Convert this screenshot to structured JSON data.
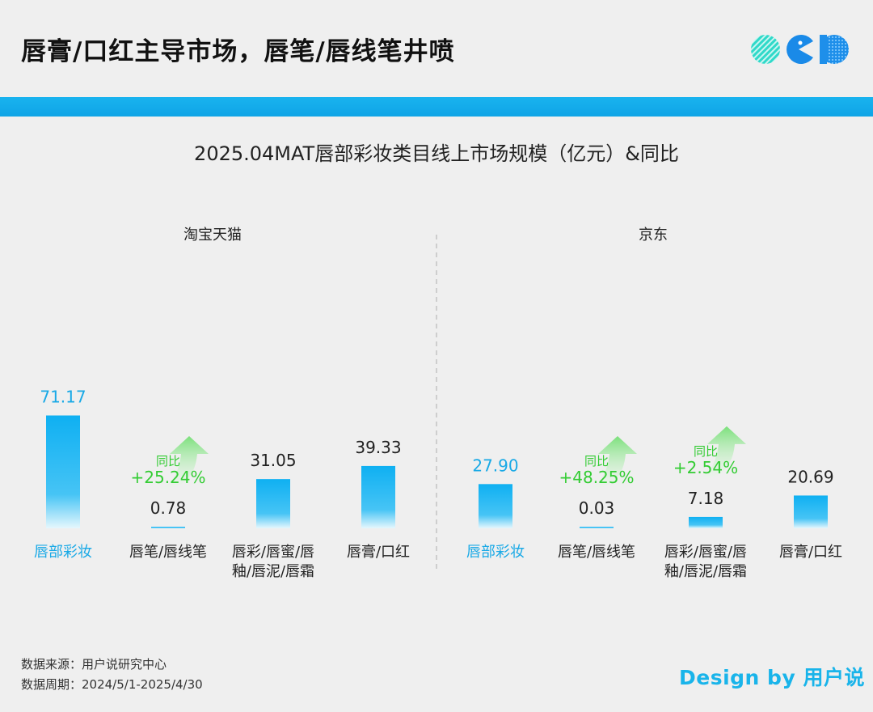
{
  "header": {
    "title": "唇膏/口红主导市场，唇笔/唇线笔井喷"
  },
  "colors": {
    "accent": "#19b3ef",
    "highlight_label": "#19a9e6",
    "yoy_green": "#33cc33",
    "background": "#efefef"
  },
  "chart_data": {
    "type": "bar",
    "title": "2025.04MAT唇部彩妆类目线上市场规模（亿元）&同比",
    "panels": [
      {
        "name": "淘宝天猫",
        "categories": [
          "唇部彩妆",
          "唇笔/唇线笔",
          "唇彩/唇蜜/唇釉/唇泥/唇霜",
          "唇膏/口红"
        ],
        "values": [
          71.17,
          0.78,
          31.05,
          39.33
        ],
        "value_labels": [
          "71.17",
          "0.78",
          "31.05",
          "39.33"
        ],
        "yoy": [
          {
            "category": "唇笔/唇线笔",
            "label": "同比",
            "value": "+25.24%"
          }
        ]
      },
      {
        "name": "京东",
        "categories": [
          "唇部彩妆",
          "唇笔/唇线笔",
          "唇彩/唇蜜/唇釉/唇泥/唇霜",
          "唇膏/口红"
        ],
        "values": [
          27.9,
          0.03,
          7.18,
          20.69
        ],
        "value_labels": [
          "27.90",
          "0.03",
          "7.18",
          "20.69"
        ],
        "yoy": [
          {
            "category": "唇笔/唇线笔",
            "label": "同比",
            "value": "+48.25%"
          },
          {
            "category": "唇彩/唇蜜/唇釉/唇泥/唇霜",
            "label": "同比",
            "value": "+2.54%"
          }
        ]
      }
    ],
    "category_label_lines": [
      [
        "唇部彩妆"
      ],
      [
        "唇笔/唇线笔"
      ],
      [
        "唇彩/唇蜜/唇",
        "釉/唇泥/唇霜"
      ],
      [
        "唇膏/口红"
      ]
    ],
    "ylim": [
      0,
      75
    ]
  },
  "footer": {
    "source": "数据来源：用户说研究中心",
    "period": "数据周期：2024/5/1-2025/4/30",
    "brand": "Design by 用户说"
  }
}
